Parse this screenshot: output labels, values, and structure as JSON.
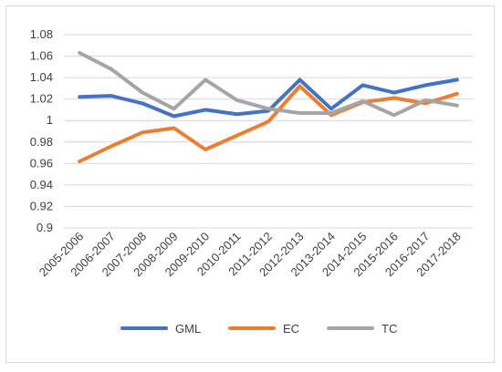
{
  "chart_data": {
    "type": "line",
    "title": "",
    "xlabel": "",
    "ylabel": "",
    "ylim": [
      0.9,
      1.08
    ],
    "yticks": [
      "1.08",
      "1.06",
      "1.04",
      "1.02",
      "1",
      "0.98",
      "0.96",
      "0.94",
      "0.92",
      "0.9"
    ],
    "categories": [
      "2005-2006",
      "2006-2007",
      "2007-2008",
      "2008-2009",
      "2009-2010",
      "2010-2011",
      "2011-2012",
      "2012-2013",
      "2013-2014",
      "2014-2015",
      "2015-2016",
      "2016-2017",
      "2017-2018"
    ],
    "grid": true,
    "legend_position": "bottom",
    "series": [
      {
        "name": "GML",
        "color": "#4472C4",
        "values": [
          1.022,
          1.023,
          1.016,
          1.004,
          1.01,
          1.006,
          1.009,
          1.038,
          1.011,
          1.033,
          1.026,
          1.033,
          1.038
        ]
      },
      {
        "name": "EC",
        "color": "#ED7D31",
        "values": [
          0.962,
          0.976,
          0.989,
          0.993,
          0.973,
          0.986,
          0.999,
          1.032,
          1.005,
          1.017,
          1.021,
          1.016,
          1.025
        ]
      },
      {
        "name": "TC",
        "color": "#A5A5A5",
        "values": [
          1.063,
          1.048,
          1.026,
          1.011,
          1.038,
          1.019,
          1.011,
          1.007,
          1.007,
          1.018,
          1.005,
          1.019,
          1.014
        ]
      }
    ]
  }
}
